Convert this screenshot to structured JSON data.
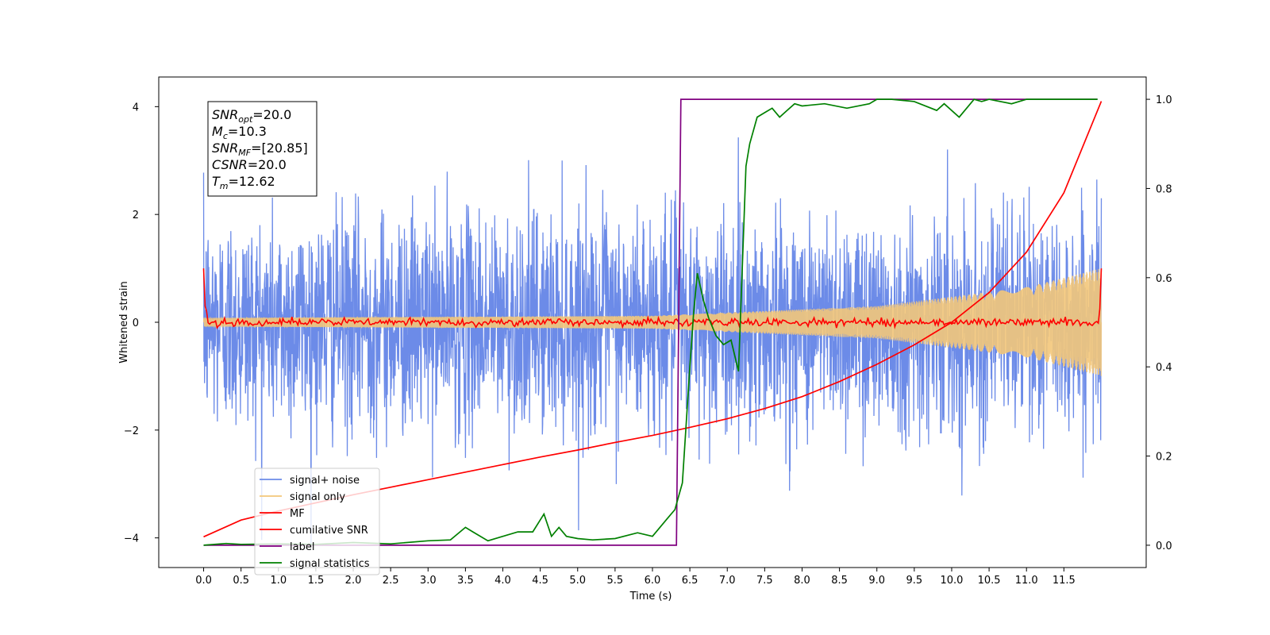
{
  "chart_data": {
    "type": "line",
    "xlabel": "Time (s)",
    "ylabel": "Whitened strain",
    "xlim": [
      -0.6,
      12.6
    ],
    "ylim": [
      -4.55,
      4.55
    ],
    "y2lim": [
      -0.05,
      1.05
    ],
    "x_ticks": [
      "0.0",
      "0.5",
      "1.0",
      "1.5",
      "2.0",
      "2.5",
      "3.0",
      "3.5",
      "4.0",
      "4.5",
      "5.0",
      "5.5",
      "6.0",
      "6.5",
      "7.0",
      "7.5",
      "8.0",
      "8.5",
      "9.0",
      "9.5",
      "10.0",
      "10.5",
      "11.0",
      "11.5"
    ],
    "y_ticks": [
      "−4",
      "−2",
      "0",
      "2",
      "4"
    ],
    "y2_ticks": [
      "0.0",
      "0.2",
      "0.4",
      "0.6",
      "0.8",
      "1.0"
    ],
    "annotation": [
      {
        "main": "SNR",
        "sub": "opt",
        "rest": "=20.0"
      },
      {
        "main": "M",
        "sub": "c",
        "rest": "=10.3"
      },
      {
        "main": "SNR",
        "sub": "MF",
        "rest": "=[20.85]"
      },
      {
        "main": "CSNR",
        "sub": "",
        "rest": "=20.0"
      },
      {
        "main": "T",
        "sub": "m",
        "rest": "=12.62"
      }
    ],
    "legend_position": "lower-left",
    "series": [
      {
        "name": "signal+ noise",
        "color": "#6c8be8",
        "axis": "left",
        "kind": "noise",
        "x_range": [
          0,
          12
        ],
        "amplitude_std": 1.0
      },
      {
        "name": "signal only",
        "color": "#f3c77a",
        "axis": "left",
        "kind": "chirp",
        "x_range": [
          0,
          12
        ],
        "envelope": {
          "x": [
            0,
            6,
            9,
            11,
            12
          ],
          "y": [
            0.08,
            0.12,
            0.3,
            0.65,
            1.0
          ]
        }
      },
      {
        "name": "MF",
        "color": "#ff0000",
        "axis": "left",
        "kind": "mf",
        "x_range": [
          0,
          12
        ],
        "endpoints": {
          "start": 1.0,
          "end": 1.0
        }
      },
      {
        "name": "cumilative SNR",
        "color": "#ff0000",
        "axis": "left",
        "x": [
          0,
          0.5,
          1,
          1.5,
          2,
          2.5,
          3,
          3.5,
          4,
          4.5,
          5,
          5.5,
          6,
          6.5,
          7,
          7.5,
          8,
          8.5,
          9,
          9.5,
          10,
          10.5,
          11,
          11.5,
          12
        ],
        "y": [
          -3.98,
          -3.67,
          -3.5,
          -3.35,
          -3.2,
          -3.06,
          -2.92,
          -2.78,
          -2.64,
          -2.5,
          -2.37,
          -2.23,
          -2.1,
          -1.95,
          -1.79,
          -1.6,
          -1.38,
          -1.1,
          -0.78,
          -0.42,
          0.0,
          0.55,
          1.3,
          2.4,
          4.1
        ]
      },
      {
        "name": "label",
        "color": "#800080",
        "axis": "right",
        "x": [
          0,
          6.32,
          6.38,
          11.95
        ],
        "y": [
          0,
          0,
          1,
          1
        ]
      },
      {
        "name": "signal statistics",
        "color": "#008000",
        "axis": "right",
        "x": [
          0,
          0.3,
          0.5,
          1.0,
          1.5,
          2.0,
          2.5,
          3.0,
          3.3,
          3.5,
          3.6,
          3.8,
          4.0,
          4.2,
          4.4,
          4.55,
          4.65,
          4.75,
          4.85,
          5.0,
          5.2,
          5.5,
          5.8,
          6.0,
          6.1,
          6.2,
          6.3,
          6.4,
          6.5,
          6.55,
          6.6,
          6.68,
          6.75,
          6.85,
          6.95,
          7.05,
          7.15,
          7.2,
          7.25,
          7.3,
          7.4,
          7.5,
          7.6,
          7.7,
          7.8,
          7.9,
          8.0,
          8.3,
          8.6,
          8.9,
          9.0,
          9.2,
          9.5,
          9.8,
          9.9,
          10.1,
          10.3,
          10.4,
          10.5,
          10.8,
          11.0,
          11.3,
          11.6,
          11.95
        ],
        "y": [
          0.0,
          0.004,
          0.002,
          0.003,
          0.002,
          0.006,
          0.003,
          0.01,
          0.012,
          0.04,
          0.03,
          0.01,
          0.02,
          0.03,
          0.03,
          0.07,
          0.02,
          0.04,
          0.02,
          0.015,
          0.012,
          0.015,
          0.028,
          0.02,
          0.04,
          0.06,
          0.08,
          0.14,
          0.4,
          0.52,
          0.61,
          0.55,
          0.51,
          0.47,
          0.45,
          0.46,
          0.39,
          0.62,
          0.85,
          0.9,
          0.96,
          0.97,
          0.98,
          0.96,
          0.975,
          0.99,
          0.985,
          0.99,
          0.98,
          0.99,
          1.0,
          1.0,
          0.995,
          0.975,
          0.99,
          0.96,
          1.0,
          0.995,
          1.0,
          0.99,
          1.0,
          1.0,
          1.0,
          1.0
        ]
      }
    ]
  }
}
